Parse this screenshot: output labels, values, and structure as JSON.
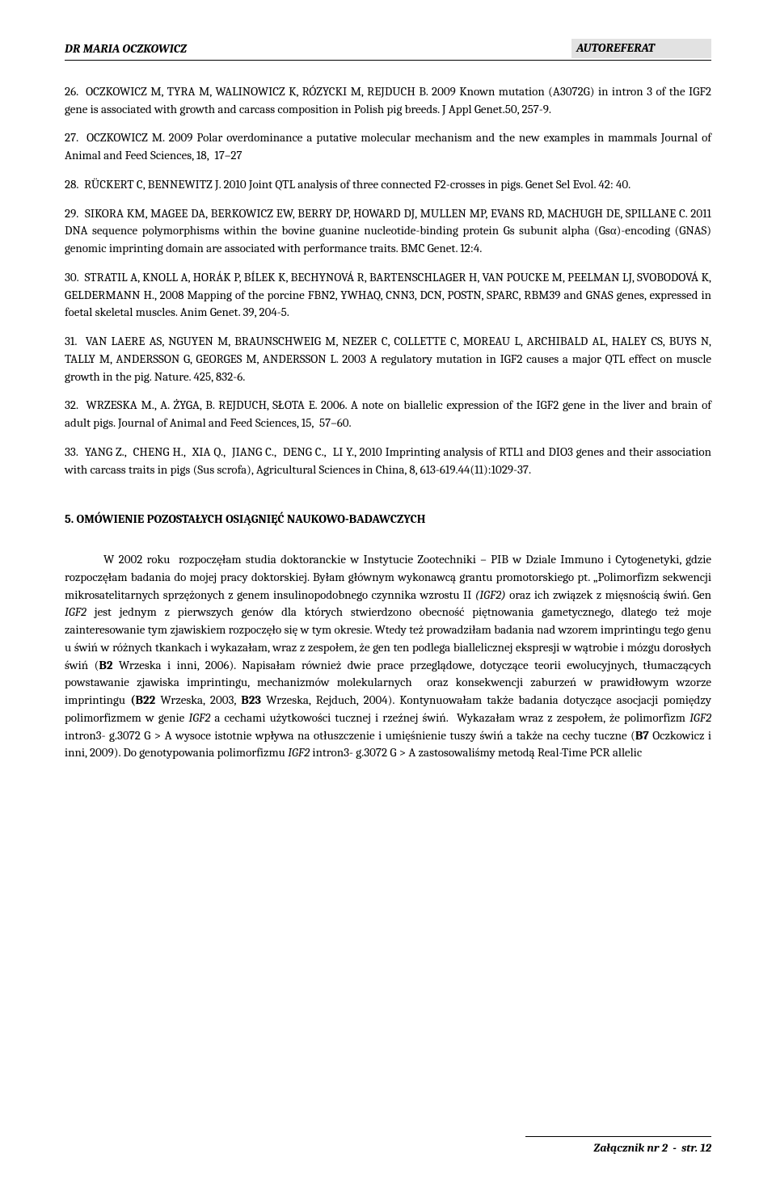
{
  "header": {
    "author": "DR MARIA OCZKOWICZ",
    "doctitle": "AUTOREFERAT"
  },
  "refs": [
    "26.  OCZKOWICZ M, TYRA M, WALINOWICZ K, RÓZYCKI M, REJDUCH B. 2009 Known mutation (A3072G) in intron 3 of the IGF2 gene is associated with growth and carcass composition in Polish pig breeds. J Appl Genet.50, 257-9.",
    "27.  OCZKOWICZ M. 2009 Polar overdominance a putative molecular mechanism and the new examples in mammals Journal of Animal and Feed Sciences, 18,  17–27",
    "28.  RÜCKERT C, BENNEWITZ J. 2010 Joint QTL analysis of three connected F2-crosses in pigs. Genet Sel Evol. 42: 40.",
    "29.  SIKORA KM, MAGEE DA, BERKOWICZ EW, BERRY DP, HOWARD DJ, MULLEN MP, EVANS RD, MACHUGH DE, SPILLANE C. 2011 DNA sequence polymorphisms within the bovine guanine nucleotide-binding protein Gs subunit alpha (Gsα)-encoding (GNAS) genomic imprinting domain are associated with performance traits. BMC Genet. 12:4.",
    "30.  STRATIL A, KNOLL A, HORÁK P, BÍLEK K, BECHYNOVÁ R, BARTENSCHLAGER H, VAN POUCKE M, PEELMAN LJ, SVOBODOVÁ K, GELDERMANN H., 2008 Mapping of the porcine FBN2, YWHAQ, CNN3, DCN, POSTN, SPARC, RBM39 and GNAS genes, expressed in foetal skeletal muscles. Anim Genet. 39, 204-5.",
    "31.  VAN LAERE AS, NGUYEN M, BRAUNSCHWEIG M, NEZER C, COLLETTE C, MOREAU L, ARCHIBALD AL, HALEY CS, BUYS N, TALLY M, ANDERSSON G, GEORGES M, ANDERSSON L. 2003 A regulatory mutation in IGF2 causes a major QTL effect on muscle growth in the pig. Nature. 425, 832-6.",
    "32.  WRZESKA M., A. ŻYGA, B. REJDUCH, SŁOTA E. 2006. A note on biallelic expression of the IGF2 gene in the liver and brain of adult pigs. Journal of Animal and Feed Sciences, 15,  57–60.",
    "33.  YANG Z.,  CHENG H.,  XIA Q.,  JIANG C.,  DENG C.,  LI Y., 2010 Imprinting analysis of RTL1 and DIO3 genes and their association with carcass traits in pigs (Sus scrofa), Agricultural Sciences in China, 8, 613-619.44(11):1029-37."
  ],
  "section_title": "5. OMÓWIENIE POZOSTAŁYCH OSIĄGNIĘĆ NAUKOWO-BADAWCZYCH",
  "body_parts": {
    "p1a": "W 2002 roku  rozpoczęłam studia doktoranckie w Instytucie Zootechniki – PIB w Dziale Immuno i Cytogenetyki, gdzie rozpoczęłam badania do mojej pracy doktorskiej. Byłam głównym wykonawcą grantu promotorskiego pt. „Polimorfizm sekwencji mikrosatelitarnych sprzężonych z genem insulinopodobnego czynnika wzrostu II ",
    "p1b": "(IGF2)",
    "p1c": " oraz ich związek z mięsnością świń. Gen ",
    "p1d": "IGF2",
    "p1e": " jest jednym z pierwszych genów dla których stwierdzono obecność piętnowania gametycznego, dlatego też moje zainteresowanie tym zjawiskiem rozpoczęło się w tym okresie. Wtedy też prowadziłam badania nad wzorem imprintingu tego genu u świń w różnych tkankach i wykazałam, wraz z zespołem, że gen ten podlega biallelicznej ekspresji w wątrobie i mózgu dorosłych świń (",
    "p1f": "B2",
    "p1g": " Wrzeska i inni, 2006). Napisałam również dwie prace przeglądowe, dotyczące teorii ewolucyjnych, tłumaczących powstawanie zjawiska imprintingu, mechanizmów molekularnych  oraz konsekwencji zaburzeń w prawidłowym wzorze imprintingu ",
    "p1h": "(B22",
    "p1i": " Wrzeska, 2003, ",
    "p1j": "B23",
    "p1k": " Wrzeska, Rejduch, 2004). Kontynuowałam także badania dotyczące asocjacji pomiędzy polimorfizmem w genie ",
    "p1l": "IGF2",
    "p1m": " a cechami użytkowości tucznej i rzeźnej świń.  Wykazałam wraz z zespołem, że polimorfizm ",
    "p1n": "IGF2",
    "p1o": " intron3- g.3072 G > A wysoce istotnie wpływa na otłuszczenie i umięśnienie tuszy świń a także na cechy tuczne (",
    "p1p": "B7",
    "p1q": " Oczkowicz i inni, 2009). Do genotypowania polimorfizmu ",
    "p1r": "IGF2",
    "p1s": " intron3- g.3072 G > A zastosowaliśmy metodą Real-Time PCR allelic"
  },
  "footer": "Załącznik nr 2  -  str. 12"
}
